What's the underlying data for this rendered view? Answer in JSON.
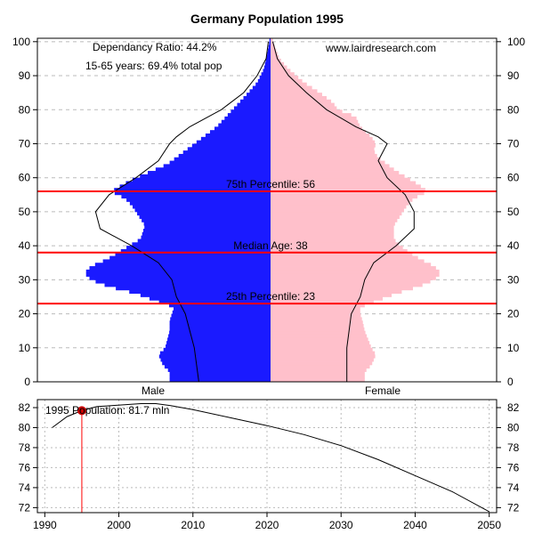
{
  "chart_data": [
    {
      "type": "population-pyramid",
      "title": "Germany Population 1995",
      "source": "www.lairdresearch.com",
      "annotations": {
        "dependency_ratio": "Dependancy Ratio: 44.2%",
        "working_age": "15-65 years: 69.4% total pop"
      },
      "xlabel_left": "Male",
      "xlabel_right": "Female",
      "ylim": [
        0,
        100
      ],
      "yticks": [
        0,
        10,
        20,
        30,
        40,
        50,
        60,
        70,
        80,
        90,
        100
      ],
      "percentiles": [
        {
          "name": "25th Percentile",
          "label": "25th Percentile: 23",
          "age": 23
        },
        {
          "name": "Median Age",
          "label": "Median Age: 38",
          "age": 38
        },
        {
          "name": "75th Percentile",
          "label": "75th Percentile: 56",
          "age": 56
        }
      ],
      "colors": {
        "male": "#1a1aff",
        "female": "#ffc0cb",
        "percentile": "#ff0000",
        "outline": "#000000",
        "grid": "#bbbbbb"
      },
      "series_units": "relative bar length (0-1 of max cohort)",
      "male": [
        [
          0,
          0.45
        ],
        [
          3,
          0.45
        ],
        [
          5,
          0.48
        ],
        [
          8,
          0.5
        ],
        [
          10,
          0.47
        ],
        [
          15,
          0.45
        ],
        [
          18,
          0.45
        ],
        [
          20,
          0.44
        ],
        [
          22,
          0.43
        ],
        [
          24,
          0.52
        ],
        [
          26,
          0.6
        ],
        [
          28,
          0.72
        ],
        [
          30,
          0.8
        ],
        [
          32,
          0.83
        ],
        [
          34,
          0.8
        ],
        [
          36,
          0.73
        ],
        [
          38,
          0.68
        ],
        [
          40,
          0.63
        ],
        [
          42,
          0.58
        ],
        [
          44,
          0.57
        ],
        [
          46,
          0.56
        ],
        [
          48,
          0.58
        ],
        [
          50,
          0.6
        ],
        [
          52,
          0.62
        ],
        [
          54,
          0.65
        ],
        [
          56,
          0.71
        ],
        [
          58,
          0.66
        ],
        [
          60,
          0.6
        ],
        [
          62,
          0.53
        ],
        [
          64,
          0.46
        ],
        [
          66,
          0.42
        ],
        [
          68,
          0.38
        ],
        [
          70,
          0.34
        ],
        [
          72,
          0.3
        ],
        [
          75,
          0.24
        ],
        [
          80,
          0.17
        ],
        [
          85,
          0.1
        ],
        [
          88,
          0.06
        ],
        [
          92,
          0.03
        ],
        [
          95,
          0.02
        ],
        [
          100,
          0.005
        ]
      ],
      "female": [
        [
          0,
          0.42
        ],
        [
          3,
          0.42
        ],
        [
          5,
          0.45
        ],
        [
          8,
          0.47
        ],
        [
          10,
          0.45
        ],
        [
          15,
          0.42
        ],
        [
          18,
          0.41
        ],
        [
          20,
          0.4
        ],
        [
          22,
          0.4
        ],
        [
          24,
          0.48
        ],
        [
          26,
          0.56
        ],
        [
          28,
          0.66
        ],
        [
          30,
          0.73
        ],
        [
          32,
          0.76
        ],
        [
          34,
          0.73
        ],
        [
          36,
          0.67
        ],
        [
          38,
          0.62
        ],
        [
          40,
          0.58
        ],
        [
          42,
          0.55
        ],
        [
          44,
          0.55
        ],
        [
          46,
          0.55
        ],
        [
          48,
          0.57
        ],
        [
          50,
          0.59
        ],
        [
          52,
          0.61
        ],
        [
          54,
          0.64
        ],
        [
          56,
          0.7
        ],
        [
          58,
          0.66
        ],
        [
          60,
          0.61
        ],
        [
          62,
          0.56
        ],
        [
          64,
          0.52
        ],
        [
          66,
          0.48
        ],
        [
          68,
          0.46
        ],
        [
          70,
          0.47
        ],
        [
          72,
          0.45
        ],
        [
          75,
          0.4
        ],
        [
          78,
          0.38
        ],
        [
          80,
          0.3
        ],
        [
          82,
          0.28
        ],
        [
          85,
          0.22
        ],
        [
          88,
          0.15
        ],
        [
          92,
          0.08
        ],
        [
          95,
          0.04
        ],
        [
          100,
          0.01
        ]
      ],
      "projection_male": [
        [
          0,
          0.32
        ],
        [
          10,
          0.34
        ],
        [
          20,
          0.38
        ],
        [
          25,
          0.42
        ],
        [
          30,
          0.44
        ],
        [
          35,
          0.5
        ],
        [
          40,
          0.62
        ],
        [
          45,
          0.76
        ],
        [
          50,
          0.78
        ],
        [
          55,
          0.72
        ],
        [
          60,
          0.6
        ],
        [
          65,
          0.5
        ],
        [
          70,
          0.45
        ],
        [
          72,
          0.42
        ],
        [
          75,
          0.36
        ],
        [
          80,
          0.22
        ],
        [
          85,
          0.12
        ],
        [
          90,
          0.06
        ],
        [
          95,
          0.02
        ],
        [
          100,
          0.01
        ]
      ],
      "projection_female": [
        [
          0,
          0.34
        ],
        [
          10,
          0.34
        ],
        [
          20,
          0.36
        ],
        [
          25,
          0.4
        ],
        [
          30,
          0.42
        ],
        [
          35,
          0.46
        ],
        [
          40,
          0.56
        ],
        [
          45,
          0.64
        ],
        [
          50,
          0.64
        ],
        [
          55,
          0.6
        ],
        [
          60,
          0.52
        ],
        [
          65,
          0.48
        ],
        [
          70,
          0.52
        ],
        [
          72,
          0.48
        ],
        [
          75,
          0.38
        ],
        [
          80,
          0.25
        ],
        [
          85,
          0.16
        ],
        [
          90,
          0.08
        ],
        [
          95,
          0.03
        ],
        [
          100,
          0.01
        ]
      ]
    },
    {
      "type": "line",
      "label": "1995 Population: 81.7 mln",
      "xlim": [
        1989,
        2051
      ],
      "ylim": [
        71.5,
        82.8
      ],
      "xticks": [
        1990,
        2000,
        2010,
        2020,
        2030,
        2040,
        2050
      ],
      "yticks": [
        72,
        74,
        76,
        78,
        80,
        82
      ],
      "highlight": {
        "year": 1995,
        "value": 81.7
      },
      "x": [
        1991,
        1993,
        1995,
        1997,
        1999,
        2001,
        2003,
        2005,
        2007,
        2010,
        2015,
        2020,
        2025,
        2030,
        2035,
        2040,
        2045,
        2050
      ],
      "y": [
        80.0,
        81.1,
        81.7,
        82.1,
        82.2,
        82.3,
        82.4,
        82.4,
        82.2,
        81.8,
        81.0,
        80.2,
        79.3,
        78.2,
        76.8,
        75.2,
        73.6,
        71.6
      ]
    }
  ]
}
